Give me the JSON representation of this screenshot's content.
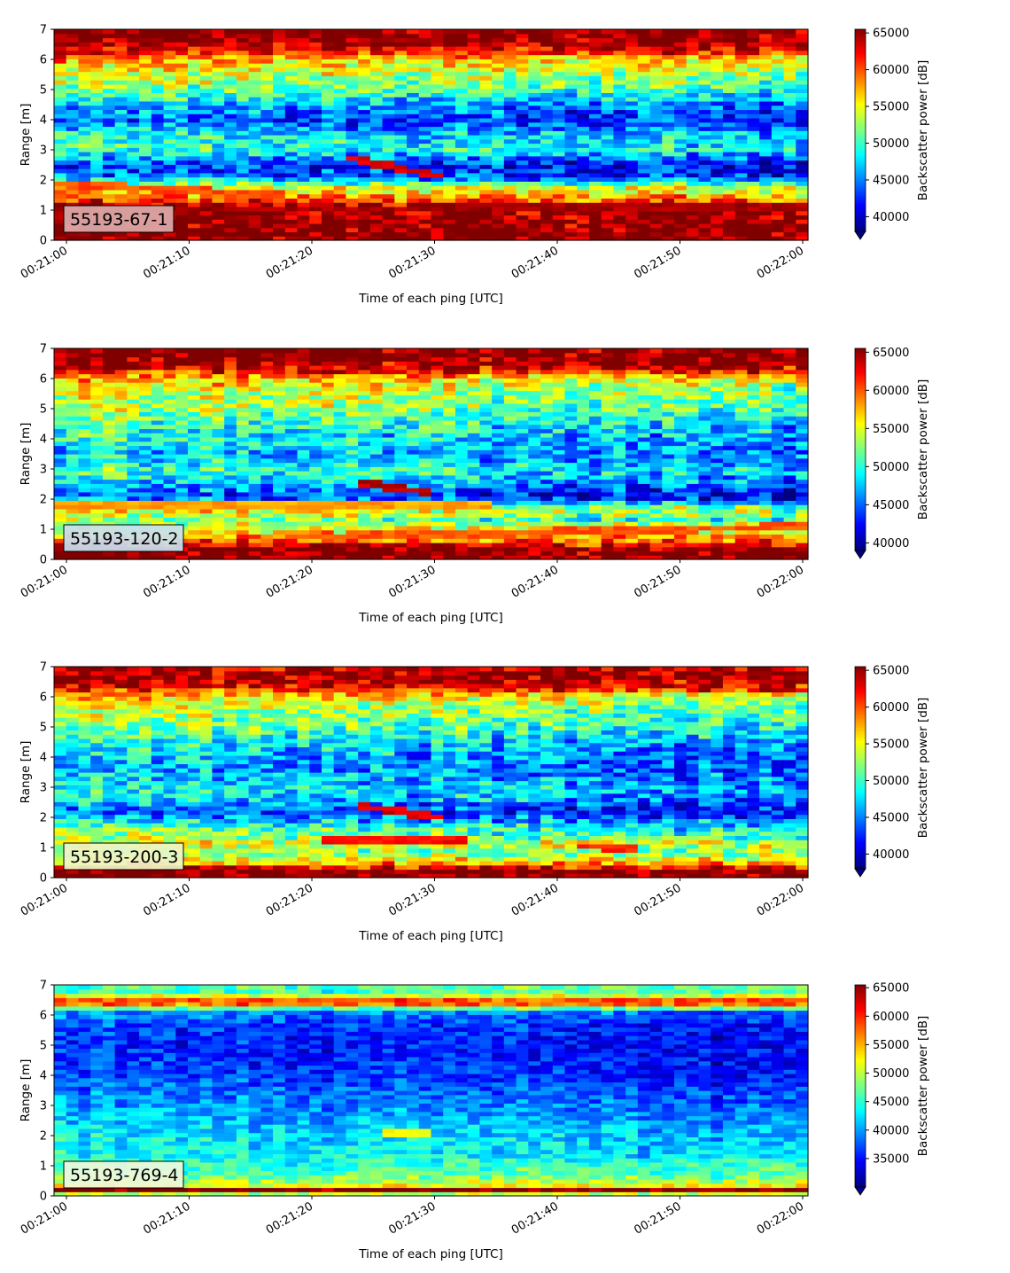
{
  "chart_data": [
    {
      "type": "heatmap",
      "label": "55193-67-1",
      "label_bg": "#dcaaaa",
      "xlabel": "Time of each ping [UTC]",
      "ylabel": "Range [m]",
      "xticks": [
        "00:21:00",
        "00:21:10",
        "00:21:20",
        "00:21:30",
        "00:21:40",
        "00:21:50",
        "00:22:00"
      ],
      "yticks": [
        0,
        1,
        2,
        3,
        4,
        5,
        6,
        7
      ],
      "ylim": [
        0,
        7
      ],
      "colorbar_label": "Backscatter power [dB]",
      "colorbar_ticks": [
        40000,
        45000,
        50000,
        55000,
        60000,
        65000
      ],
      "clim": [
        38000,
        65500
      ],
      "colormap": "jet",
      "profile": [
        [
          0.0,
          66000
        ],
        [
          0.3,
          66000
        ],
        [
          0.8,
          65000
        ],
        [
          1.2,
          64000
        ],
        [
          1.5,
          59000
        ],
        [
          1.8,
          55000
        ],
        [
          2.1,
          45000
        ],
        [
          2.5,
          43000
        ],
        [
          3.0,
          50000
        ],
        [
          3.5,
          49000
        ],
        [
          4.0,
          44000
        ],
        [
          4.5,
          47000
        ],
        [
          5.0,
          52000
        ],
        [
          5.5,
          55000
        ],
        [
          6.0,
          58000
        ],
        [
          6.3,
          62000
        ],
        [
          6.6,
          65500
        ],
        [
          7.0,
          66000
        ]
      ],
      "trend": -2500,
      "noise": 5500,
      "features": [
        {
          "t0": 0.0,
          "t1": 0.3,
          "r0": 1.9,
          "r1": 1.5,
          "value": 60000
        },
        {
          "t0": 0.38,
          "t1": 0.52,
          "r0": 2.8,
          "r1": 2.1,
          "value": 63000
        },
        {
          "t0": 0.0,
          "t1": 1.0,
          "r0": 1.0,
          "r1": 1.15,
          "value": 64500
        }
      ]
    },
    {
      "type": "heatmap",
      "label": "55193-120-2",
      "label_bg": "#c9dff0",
      "xlabel": "Time of each ping [UTC]",
      "ylabel": "Range [m]",
      "xticks": [
        "00:21:00",
        "00:21:10",
        "00:21:20",
        "00:21:30",
        "00:21:40",
        "00:21:50",
        "00:22:00"
      ],
      "yticks": [
        0,
        1,
        2,
        3,
        4,
        5,
        6,
        7
      ],
      "ylim": [
        0,
        7
      ],
      "colorbar_label": "Backscatter power [dB]",
      "colorbar_ticks": [
        40000,
        45000,
        50000,
        55000,
        60000,
        65000
      ],
      "clim": [
        39000,
        65500
      ],
      "colormap": "jet",
      "profile": [
        [
          0.0,
          66000
        ],
        [
          0.35,
          66000
        ],
        [
          0.6,
          60000
        ],
        [
          0.9,
          56000
        ],
        [
          1.3,
          53000
        ],
        [
          1.7,
          57000
        ],
        [
          2.1,
          44000
        ],
        [
          2.6,
          49000
        ],
        [
          3.0,
          51000
        ],
        [
          3.5,
          48000
        ],
        [
          4.0,
          50000
        ],
        [
          4.5,
          51000
        ],
        [
          5.0,
          54000
        ],
        [
          5.5,
          55000
        ],
        [
          6.0,
          58000
        ],
        [
          6.4,
          64000
        ],
        [
          6.7,
          66000
        ],
        [
          7.0,
          66000
        ]
      ],
      "trend": -3500,
      "noise": 5500,
      "features": [
        {
          "t0": 0.0,
          "t1": 0.58,
          "r0": 1.85,
          "r1": 1.85,
          "value": 58000
        },
        {
          "t0": 0.4,
          "t1": 0.5,
          "r0": 2.6,
          "r1": 2.2,
          "value": 64000
        },
        {
          "t0": 0.3,
          "t1": 1.0,
          "r0": 0.75,
          "r1": 1.1,
          "value": 60000
        }
      ]
    },
    {
      "type": "heatmap",
      "label": "55193-200-3",
      "label_bg": "#eef4c8",
      "xlabel": "Time of each ping [UTC]",
      "ylabel": "Range [m]",
      "xticks": [
        "00:21:00",
        "00:21:10",
        "00:21:20",
        "00:21:30",
        "00:21:40",
        "00:21:50",
        "00:22:00"
      ],
      "yticks": [
        0,
        1,
        2,
        3,
        4,
        5,
        6,
        7
      ],
      "ylim": [
        0,
        7
      ],
      "colorbar_label": "Backscatter power [dB]",
      "colorbar_ticks": [
        40000,
        45000,
        50000,
        55000,
        60000,
        65000
      ],
      "clim": [
        38000,
        65500
      ],
      "colormap": "jet",
      "profile": [
        [
          0.0,
          66000
        ],
        [
          0.25,
          66000
        ],
        [
          0.45,
          58000
        ],
        [
          0.8,
          52000
        ],
        [
          1.2,
          54000
        ],
        [
          1.6,
          52000
        ],
        [
          2.2,
          44000
        ],
        [
          2.6,
          48000
        ],
        [
          3.0,
          49000
        ],
        [
          3.5,
          47000
        ],
        [
          4.0,
          47000
        ],
        [
          4.5,
          49000
        ],
        [
          5.0,
          52000
        ],
        [
          5.6,
          54000
        ],
        [
          6.0,
          57000
        ],
        [
          6.4,
          63000
        ],
        [
          6.7,
          65000
        ],
        [
          7.0,
          63000
        ]
      ],
      "trend": -3500,
      "noise": 5500,
      "features": [
        {
          "t0": 0.4,
          "t1": 0.52,
          "r0": 2.4,
          "r1": 2.0,
          "value": 63000
        },
        {
          "t0": 0.35,
          "t1": 0.55,
          "r0": 1.25,
          "r1": 1.25,
          "value": 62000
        },
        {
          "t0": 0.7,
          "t1": 0.78,
          "r0": 1.05,
          "r1": 1.0,
          "value": 61000
        }
      ]
    },
    {
      "type": "heatmap",
      "label": "55193-769-4",
      "label_bg": "#f0f8dc",
      "xlabel": "Time of each ping [UTC]",
      "ylabel": "Range [m]",
      "xticks": [
        "00:21:00",
        "00:21:10",
        "00:21:20",
        "00:21:30",
        "00:21:40",
        "00:21:50",
        "00:22:00"
      ],
      "yticks": [
        0,
        1,
        2,
        3,
        4,
        5,
        6,
        7
      ],
      "ylim": [
        0,
        7
      ],
      "colorbar_label": "Backscatter power [dB]",
      "colorbar_ticks": [
        35000,
        40000,
        45000,
        50000,
        55000,
        60000,
        65000
      ],
      "clim": [
        30000,
        65500
      ],
      "colormap": "jet",
      "profile": [
        [
          0.0,
          50000
        ],
        [
          0.15,
          50000
        ],
        [
          0.2,
          66000
        ],
        [
          0.28,
          66000
        ],
        [
          0.35,
          52000
        ],
        [
          0.7,
          46000
        ],
        [
          1.2,
          44000
        ],
        [
          2.0,
          43000
        ],
        [
          3.0,
          40000
        ],
        [
          4.0,
          37000
        ],
        [
          5.0,
          36000
        ],
        [
          5.7,
          37000
        ],
        [
          6.1,
          40000
        ],
        [
          6.3,
          50000
        ],
        [
          6.42,
          62000
        ],
        [
          6.55,
          56000
        ],
        [
          6.75,
          45000
        ],
        [
          7.0,
          47000
        ]
      ],
      "trend": -2500,
      "noise": 4500,
      "features": [
        {
          "t0": 0.43,
          "t1": 0.5,
          "r0": 2.1,
          "r1": 2.1,
          "value": 52000
        }
      ]
    }
  ]
}
